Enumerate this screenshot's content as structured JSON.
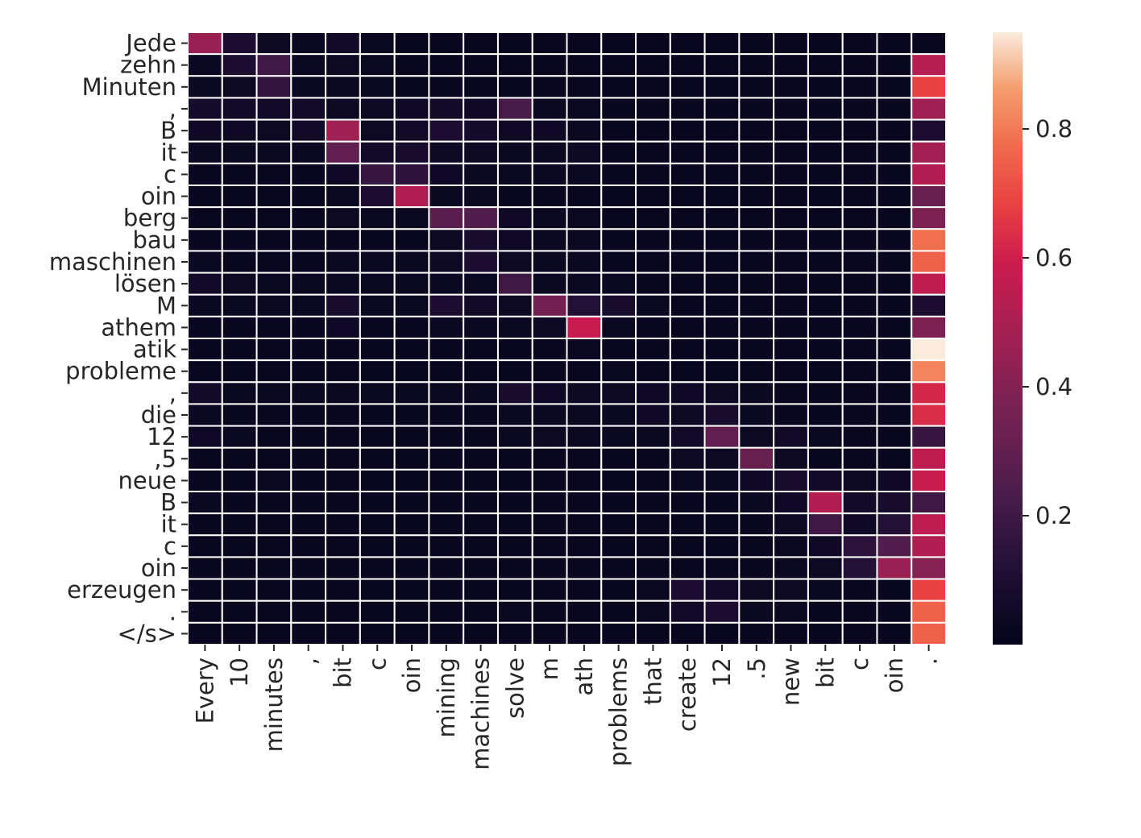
{
  "chart_data": {
    "type": "heatmap",
    "title": "",
    "xlabel": "",
    "ylabel": "",
    "x_labels": [
      "Every",
      "10",
      "minutes",
      ",",
      "bit",
      "c",
      "oin",
      "mining",
      "machines",
      "solve",
      "m",
      "ath",
      "problems",
      "that",
      "create",
      "12",
      ".5",
      "new",
      "bit",
      "c",
      "oin",
      "."
    ],
    "y_labels": [
      "Jede",
      "zehn",
      "Minuten",
      ",",
      "B",
      "it",
      "c",
      "oin",
      "berg",
      "bau",
      "maschinen",
      "lösen",
      "M",
      "athem",
      "atik",
      "probleme",
      ",",
      "die",
      "12",
      ",5",
      "neue",
      "B",
      "it",
      "c",
      "oin",
      "erzeugen",
      ".",
      "</s>"
    ],
    "values": [
      [
        0.45,
        0.1,
        0.04,
        0.03,
        0.06,
        0.03,
        0.02,
        0.02,
        0.02,
        0.02,
        0.02,
        0.02,
        0.02,
        0.02,
        0.02,
        0.02,
        0.02,
        0.02,
        0.02,
        0.02,
        0.02,
        0.02
      ],
      [
        0.03,
        0.1,
        0.2,
        0.03,
        0.04,
        0.03,
        0.02,
        0.02,
        0.02,
        0.02,
        0.02,
        0.02,
        0.02,
        0.02,
        0.02,
        0.02,
        0.02,
        0.02,
        0.02,
        0.02,
        0.02,
        0.53
      ],
      [
        0.03,
        0.04,
        0.17,
        0.03,
        0.03,
        0.03,
        0.02,
        0.02,
        0.02,
        0.02,
        0.02,
        0.02,
        0.02,
        0.02,
        0.02,
        0.02,
        0.02,
        0.02,
        0.02,
        0.02,
        0.02,
        0.68
      ],
      [
        0.07,
        0.06,
        0.06,
        0.06,
        0.04,
        0.04,
        0.05,
        0.06,
        0.05,
        0.22,
        0.03,
        0.03,
        0.02,
        0.02,
        0.02,
        0.02,
        0.02,
        0.02,
        0.02,
        0.02,
        0.02,
        0.47
      ],
      [
        0.05,
        0.05,
        0.04,
        0.06,
        0.47,
        0.04,
        0.06,
        0.1,
        0.07,
        0.05,
        0.05,
        0.03,
        0.02,
        0.02,
        0.02,
        0.02,
        0.02,
        0.02,
        0.02,
        0.02,
        0.02,
        0.1
      ],
      [
        0.03,
        0.03,
        0.03,
        0.03,
        0.3,
        0.06,
        0.08,
        0.04,
        0.04,
        0.03,
        0.03,
        0.04,
        0.02,
        0.02,
        0.02,
        0.02,
        0.02,
        0.02,
        0.02,
        0.02,
        0.02,
        0.48
      ],
      [
        0.02,
        0.02,
        0.02,
        0.02,
        0.05,
        0.18,
        0.15,
        0.05,
        0.03,
        0.03,
        0.03,
        0.03,
        0.02,
        0.02,
        0.02,
        0.02,
        0.02,
        0.02,
        0.02,
        0.02,
        0.02,
        0.52
      ],
      [
        0.02,
        0.02,
        0.02,
        0.02,
        0.03,
        0.1,
        0.52,
        0.03,
        0.03,
        0.02,
        0.02,
        0.02,
        0.02,
        0.02,
        0.02,
        0.02,
        0.02,
        0.02,
        0.02,
        0.02,
        0.02,
        0.32
      ],
      [
        0.02,
        0.02,
        0.02,
        0.02,
        0.04,
        0.03,
        0.03,
        0.28,
        0.25,
        0.05,
        0.03,
        0.03,
        0.02,
        0.02,
        0.02,
        0.02,
        0.02,
        0.02,
        0.02,
        0.02,
        0.02,
        0.38
      ],
      [
        0.02,
        0.02,
        0.02,
        0.02,
        0.02,
        0.02,
        0.02,
        0.04,
        0.08,
        0.05,
        0.03,
        0.03,
        0.02,
        0.02,
        0.02,
        0.02,
        0.02,
        0.02,
        0.02,
        0.02,
        0.02,
        0.78
      ],
      [
        0.03,
        0.02,
        0.02,
        0.02,
        0.03,
        0.03,
        0.03,
        0.04,
        0.1,
        0.04,
        0.03,
        0.03,
        0.02,
        0.02,
        0.02,
        0.02,
        0.02,
        0.02,
        0.02,
        0.02,
        0.02,
        0.75
      ],
      [
        0.06,
        0.04,
        0.03,
        0.03,
        0.03,
        0.03,
        0.03,
        0.03,
        0.03,
        0.2,
        0.03,
        0.03,
        0.03,
        0.02,
        0.02,
        0.02,
        0.02,
        0.02,
        0.02,
        0.02,
        0.02,
        0.55
      ],
      [
        0.03,
        0.03,
        0.03,
        0.03,
        0.08,
        0.03,
        0.03,
        0.1,
        0.06,
        0.04,
        0.35,
        0.12,
        0.08,
        0.03,
        0.02,
        0.02,
        0.02,
        0.02,
        0.02,
        0.02,
        0.02,
        0.1
      ],
      [
        0.02,
        0.02,
        0.02,
        0.02,
        0.05,
        0.02,
        0.02,
        0.03,
        0.03,
        0.03,
        0.04,
        0.58,
        0.03,
        0.02,
        0.02,
        0.02,
        0.02,
        0.02,
        0.02,
        0.02,
        0.02,
        0.38
      ],
      [
        0.02,
        0.02,
        0.02,
        0.02,
        0.02,
        0.02,
        0.02,
        0.02,
        0.02,
        0.02,
        0.02,
        0.03,
        0.02,
        0.02,
        0.02,
        0.02,
        0.02,
        0.02,
        0.02,
        0.02,
        0.02,
        0.95
      ],
      [
        0.02,
        0.02,
        0.02,
        0.02,
        0.02,
        0.02,
        0.02,
        0.02,
        0.02,
        0.02,
        0.02,
        0.02,
        0.03,
        0.02,
        0.02,
        0.02,
        0.02,
        0.02,
        0.02,
        0.02,
        0.02,
        0.82
      ],
      [
        0.06,
        0.03,
        0.03,
        0.03,
        0.03,
        0.03,
        0.03,
        0.03,
        0.03,
        0.08,
        0.05,
        0.04,
        0.04,
        0.05,
        0.05,
        0.04,
        0.03,
        0.02,
        0.02,
        0.02,
        0.02,
        0.62
      ],
      [
        0.03,
        0.02,
        0.02,
        0.02,
        0.02,
        0.02,
        0.02,
        0.02,
        0.02,
        0.03,
        0.03,
        0.03,
        0.03,
        0.05,
        0.04,
        0.08,
        0.03,
        0.02,
        0.02,
        0.02,
        0.02,
        0.63
      ],
      [
        0.05,
        0.03,
        0.02,
        0.02,
        0.02,
        0.02,
        0.02,
        0.02,
        0.02,
        0.03,
        0.04,
        0.03,
        0.03,
        0.03,
        0.06,
        0.3,
        0.04,
        0.06,
        0.03,
        0.02,
        0.02,
        0.18
      ],
      [
        0.02,
        0.02,
        0.02,
        0.02,
        0.02,
        0.02,
        0.02,
        0.02,
        0.02,
        0.02,
        0.02,
        0.02,
        0.02,
        0.02,
        0.04,
        0.04,
        0.32,
        0.04,
        0.02,
        0.02,
        0.02,
        0.55
      ],
      [
        0.02,
        0.02,
        0.03,
        0.02,
        0.02,
        0.02,
        0.02,
        0.02,
        0.02,
        0.02,
        0.02,
        0.02,
        0.02,
        0.02,
        0.03,
        0.03,
        0.05,
        0.08,
        0.06,
        0.04,
        0.05,
        0.58
      ],
      [
        0.03,
        0.02,
        0.02,
        0.02,
        0.02,
        0.02,
        0.02,
        0.02,
        0.02,
        0.02,
        0.02,
        0.02,
        0.02,
        0.02,
        0.02,
        0.02,
        0.03,
        0.05,
        0.52,
        0.06,
        0.08,
        0.2
      ],
      [
        0.02,
        0.02,
        0.02,
        0.02,
        0.02,
        0.02,
        0.02,
        0.02,
        0.02,
        0.02,
        0.02,
        0.02,
        0.02,
        0.02,
        0.02,
        0.02,
        0.02,
        0.04,
        0.2,
        0.05,
        0.12,
        0.55
      ],
      [
        0.02,
        0.02,
        0.02,
        0.02,
        0.02,
        0.02,
        0.02,
        0.02,
        0.02,
        0.02,
        0.02,
        0.02,
        0.02,
        0.02,
        0.02,
        0.02,
        0.02,
        0.03,
        0.05,
        0.15,
        0.25,
        0.52
      ],
      [
        0.02,
        0.02,
        0.02,
        0.02,
        0.02,
        0.02,
        0.02,
        0.02,
        0.02,
        0.02,
        0.02,
        0.02,
        0.02,
        0.02,
        0.02,
        0.02,
        0.02,
        0.03,
        0.04,
        0.12,
        0.45,
        0.4
      ],
      [
        0.02,
        0.02,
        0.02,
        0.02,
        0.02,
        0.02,
        0.02,
        0.02,
        0.02,
        0.02,
        0.02,
        0.02,
        0.02,
        0.03,
        0.1,
        0.06,
        0.04,
        0.04,
        0.03,
        0.02,
        0.02,
        0.68
      ],
      [
        0.02,
        0.02,
        0.02,
        0.02,
        0.02,
        0.02,
        0.02,
        0.02,
        0.02,
        0.03,
        0.02,
        0.02,
        0.02,
        0.03,
        0.06,
        0.1,
        0.03,
        0.03,
        0.02,
        0.02,
        0.02,
        0.75
      ],
      [
        0.02,
        0.02,
        0.02,
        0.02,
        0.02,
        0.02,
        0.02,
        0.02,
        0.02,
        0.02,
        0.02,
        0.02,
        0.02,
        0.02,
        0.02,
        0.02,
        0.02,
        0.02,
        0.02,
        0.02,
        0.02,
        0.75
      ]
    ],
    "colorscale": "rocket",
    "vmin": 0.0,
    "vmax": 0.95,
    "colorbar_ticks": [
      "0.2",
      "0.4",
      "0.6",
      "0.8"
    ],
    "colorbar_tick_values": [
      0.2,
      0.4,
      0.6,
      0.8
    ],
    "grid_lines": true,
    "grid_color": "#ffffff"
  }
}
